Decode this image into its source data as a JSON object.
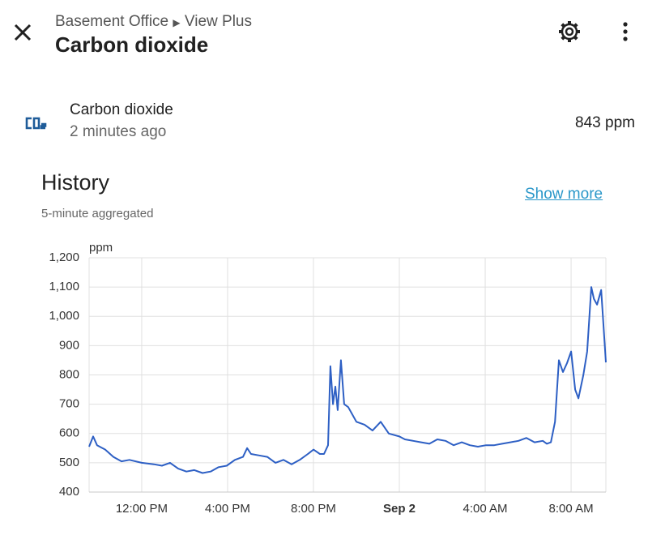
{
  "header": {
    "breadcrumb": [
      "Basement Office",
      "View Plus"
    ],
    "title": "Carbon dioxide"
  },
  "entity": {
    "name": "Carbon dioxide",
    "updated": "2 minutes ago",
    "state": "843 ppm"
  },
  "history": {
    "title": "History",
    "subtitle": "5-minute aggregated",
    "link": "Show more"
  },
  "chart_data": {
    "type": "line",
    "y_label": "ppm",
    "xlim": [
      9.55,
      33.62
    ],
    "xticks": [
      {
        "value": 12,
        "label": "12:00 PM"
      },
      {
        "value": 16,
        "label": "4:00 PM"
      },
      {
        "value": 20,
        "label": "8:00 PM"
      },
      {
        "value": 24,
        "label": "Sep 2"
      },
      {
        "value": 28,
        "label": "4:00 AM"
      },
      {
        "value": 32,
        "label": "8:00 AM"
      }
    ],
    "ylim": [
      400,
      1200
    ],
    "yticks": [
      400,
      500,
      600,
      700,
      800,
      900,
      {
        "value": 1000,
        "label": "1,000"
      },
      {
        "value": 1100,
        "label": "1,100"
      },
      {
        "value": 1200,
        "label": "1,200"
      }
    ],
    "grid": true,
    "series": [
      {
        "name": "Carbon dioxide",
        "color": "#2d5fc4",
        "x": [
          9.55,
          9.74,
          9.92,
          10.3,
          10.68,
          11.06,
          11.43,
          12.0,
          12.57,
          12.94,
          13.32,
          13.7,
          14.08,
          14.45,
          14.83,
          15.21,
          15.58,
          15.96,
          16.34,
          16.72,
          16.91,
          17.09,
          17.47,
          17.85,
          18.23,
          18.6,
          18.98,
          19.36,
          19.74,
          20.0,
          20.3,
          20.49,
          20.68,
          20.79,
          20.91,
          21.02,
          21.13,
          21.28,
          21.43,
          21.62,
          22.0,
          22.38,
          22.75,
          23.13,
          23.51,
          24.0,
          24.26,
          24.64,
          25.02,
          25.4,
          25.77,
          26.15,
          26.53,
          26.91,
          27.28,
          27.66,
          28.04,
          28.42,
          28.79,
          29.17,
          29.55,
          29.92,
          30.3,
          30.68,
          30.87,
          31.06,
          31.25,
          31.43,
          31.62,
          31.81,
          32.0,
          32.19,
          32.34,
          32.57,
          32.75,
          32.94,
          33.06,
          33.21,
          33.4,
          33.62
        ],
        "values": [
          555,
          590,
          560,
          545,
          520,
          505,
          510,
          500,
          495,
          490,
          500,
          480,
          470,
          475,
          465,
          470,
          485,
          490,
          510,
          520,
          550,
          530,
          525,
          520,
          500,
          510,
          495,
          510,
          530,
          545,
          530,
          530,
          560,
          830,
          700,
          760,
          680,
          850,
          700,
          690,
          640,
          630,
          610,
          640,
          600,
          590,
          580,
          575,
          570,
          565,
          580,
          575,
          560,
          570,
          560,
          555,
          560,
          560,
          565,
          570,
          575,
          585,
          570,
          575,
          565,
          570,
          640,
          850,
          810,
          840,
          880,
          750,
          720,
          800,
          880,
          1100,
          1060,
          1040,
          1090,
          843
        ]
      }
    ]
  }
}
